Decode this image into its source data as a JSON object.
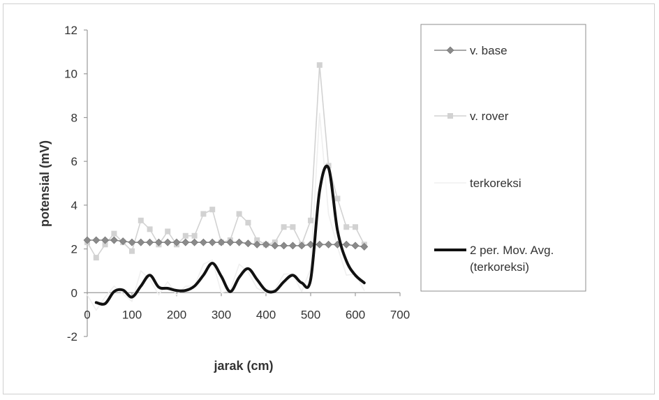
{
  "chart_data": {
    "type": "line",
    "xlabel": "jarak (cm)",
    "ylabel": "potensial (mV)",
    "xlim": [
      0,
      700
    ],
    "ylim": [
      -2,
      12
    ],
    "x_ticks": [
      0,
      100,
      200,
      300,
      400,
      500,
      600,
      700
    ],
    "y_ticks": [
      -2,
      0,
      2,
      4,
      6,
      8,
      10,
      12
    ],
    "grid": false,
    "legend_position": "right",
    "x": [
      0,
      20,
      40,
      60,
      80,
      100,
      120,
      140,
      160,
      180,
      200,
      220,
      240,
      260,
      280,
      300,
      320,
      340,
      360,
      380,
      400,
      420,
      440,
      460,
      480,
      500,
      520,
      540,
      560,
      580,
      600,
      620
    ],
    "series": [
      {
        "name": "v. base",
        "color": "#8a8a8a",
        "marker": "diamond",
        "values": [
          2.4,
          2.4,
          2.4,
          2.4,
          2.35,
          2.3,
          2.3,
          2.3,
          2.3,
          2.3,
          2.3,
          2.3,
          2.3,
          2.3,
          2.3,
          2.3,
          2.3,
          2.3,
          2.25,
          2.2,
          2.2,
          2.15,
          2.15,
          2.15,
          2.15,
          2.2,
          2.2,
          2.2,
          2.2,
          2.2,
          2.15,
          2.1
        ]
      },
      {
        "name": "v. rover",
        "color": "#d2d2d2",
        "marker": "square",
        "values": [
          2.3,
          1.6,
          2.2,
          2.7,
          2.3,
          1.9,
          3.3,
          2.9,
          2.2,
          2.8,
          2.2,
          2.6,
          2.6,
          3.6,
          3.8,
          2.3,
          2.4,
          3.6,
          3.2,
          2.4,
          2.2,
          2.3,
          3.0,
          3.0,
          2.2,
          3.3,
          10.4,
          5.8,
          4.3,
          3.0,
          3.0,
          2.2
        ]
      },
      {
        "name": "terkoreksi",
        "color": "#efefef",
        "marker": "none",
        "values": [
          -0.1,
          -0.8,
          -0.2,
          0.3,
          -0.05,
          -0.4,
          1.0,
          0.6,
          -0.1,
          0.5,
          -0.1,
          0.3,
          0.3,
          1.3,
          1.5,
          0.0,
          0.1,
          1.3,
          0.95,
          0.2,
          0.0,
          0.15,
          0.85,
          0.85,
          0.05,
          1.1,
          8.2,
          3.6,
          2.1,
          0.8,
          0.85,
          0.1
        ]
      },
      {
        "name": "2 per. Mov. Avg. (terkoreksi)",
        "color": "#111111",
        "marker": "none",
        "values": [
          null,
          -0.45,
          -0.5,
          0.05,
          0.12,
          -0.2,
          0.3,
          0.8,
          0.25,
          0.2,
          0.1,
          0.1,
          0.3,
          0.8,
          1.35,
          0.75,
          0.05,
          0.7,
          1.1,
          0.6,
          0.1,
          0.07,
          0.5,
          0.8,
          0.45,
          0.6,
          4.65,
          5.7,
          2.85,
          1.45,
          0.8,
          0.45
        ]
      }
    ]
  }
}
